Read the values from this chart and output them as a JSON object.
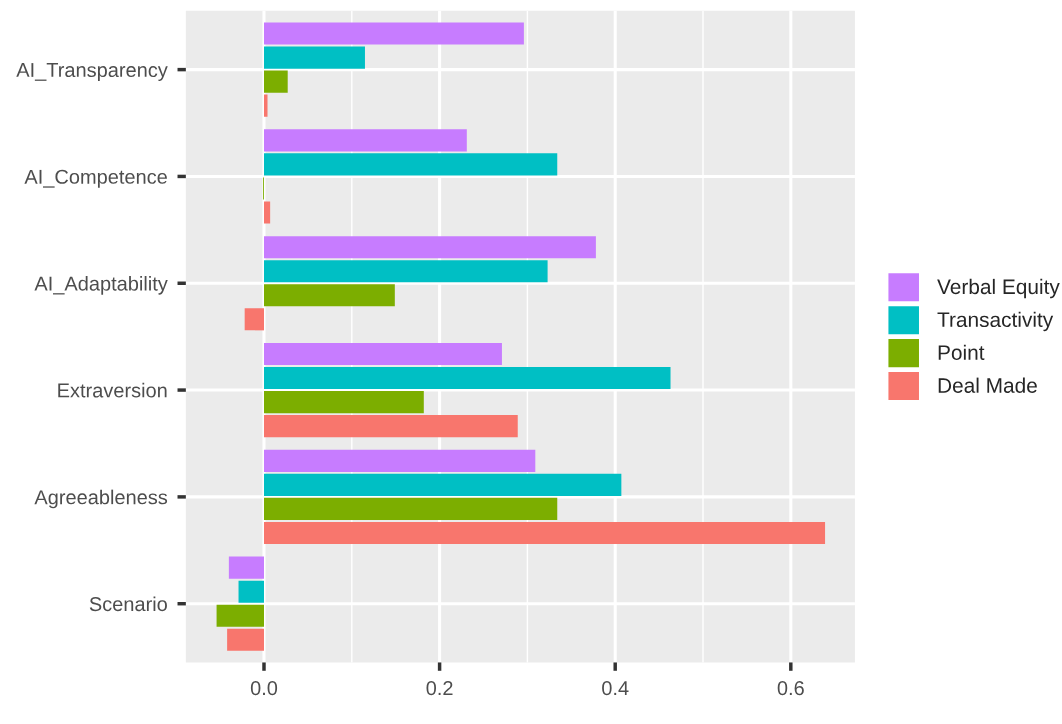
{
  "chart_data": {
    "type": "bar",
    "orientation": "horizontal",
    "categories": [
      "AI_Transparency",
      "AI_Competence",
      "AI_Adaptability",
      "Extraversion",
      "Agreeableness",
      "Scenario"
    ],
    "series": [
      {
        "name": "Verbal Equity",
        "color": "#c77cff",
        "values": [
          0.296,
          0.231,
          0.378,
          0.271,
          0.309,
          -0.04
        ]
      },
      {
        "name": "Transactivity",
        "color": "#00bfc4",
        "values": [
          0.115,
          0.334,
          0.323,
          0.463,
          0.407,
          -0.029
        ]
      },
      {
        "name": "Point",
        "color": "#7cae00",
        "values": [
          0.027,
          -0.001,
          0.149,
          0.182,
          0.334,
          -0.054
        ]
      },
      {
        "name": "Deal Made",
        "color": "#f8766d",
        "values": [
          0.004,
          0.007,
          -0.022,
          0.289,
          0.639,
          -0.042
        ]
      }
    ],
    "xlim": [
      -0.089,
      0.673
    ],
    "xticks": [
      {
        "value": 0,
        "label": "0.0"
      },
      {
        "value": 0.2,
        "label": "0.2"
      },
      {
        "value": 0.4,
        "label": "0.4"
      },
      {
        "value": 0.6,
        "label": "0.6"
      }
    ],
    "grid": true,
    "legend": "right"
  }
}
